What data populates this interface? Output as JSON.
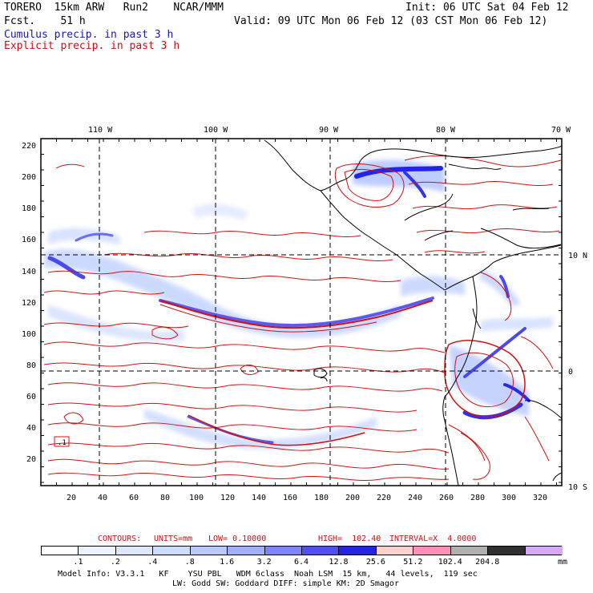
{
  "header": {
    "line1_left": "TORERO  15km ARW   Run2    NCAR/MMM",
    "line1_right": "Init: 06 UTC Sat 04 Feb 12",
    "line2_left": "Fcst.    51 h",
    "line2_right": "Valid: 09 UTC Mon 06 Feb 12 (03 CST Mon 06 Feb 12)",
    "legend_cumulus": "Cumulus precip. in past 3 h",
    "legend_explicit": "Explicit precip. in past 3 h"
  },
  "map": {
    "lon_labels": [
      "110 W",
      "100 W",
      "90 W",
      "80 W",
      "70 W"
    ],
    "lat_labels": [
      "10 N",
      "0",
      "10 S"
    ],
    "y_ticks": [
      "220",
      "200",
      "180",
      "160",
      "140",
      "120",
      "100",
      "80",
      "60",
      "40",
      "20"
    ],
    "x_ticks": [
      "20",
      "40",
      "60",
      "80",
      "100",
      "120",
      "140",
      "160",
      "180",
      "200",
      "220",
      "240",
      "260",
      "280",
      "300",
      "320"
    ],
    "box_label": ".1"
  },
  "contour_info": {
    "label_contours": "CONTOURS:",
    "label_units": "UNITS=mm",
    "label_low": "LOW= 0.10000",
    "label_high": "HIGH=  102.40",
    "label_interval": "INTERVAL=X  4.0000"
  },
  "colorbar": {
    "labels": [
      ".1",
      ".2",
      ".4",
      ".8",
      "1.6",
      "3.2",
      "6.4",
      "12.8",
      "25.6",
      "51.2",
      "102.4",
      "204.8"
    ],
    "unit": "mm",
    "colors": [
      "#ffffff",
      "#eef4ff",
      "#dde8ff",
      "#cddcff",
      "#b8caff",
      "#a0b0ff",
      "#7c84ff",
      "#5050f0",
      "#2424e8",
      "#ffd0d0",
      "#ff90b8",
      "#b0b0b0",
      "#303030",
      "#d8a8ff"
    ]
  },
  "footer": {
    "line1": "Model Info: V3.3.1   KF    YSU PBL   WDM 6class  Noah LSM  15 km,   44 levels,  119 sec",
    "line2": "LW: Godd SW: Goddard DIFF: simple KM: 2D Smagor"
  }
}
